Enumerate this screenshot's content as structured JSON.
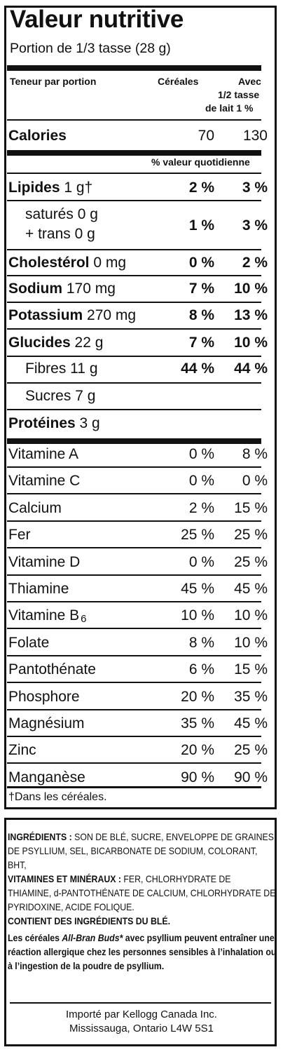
{
  "title": "Valeur nutritive",
  "portion": "Portion de 1/3 tasse (28 g)",
  "headers": {
    "teneur": "Teneur par portion",
    "cereales": "Céréales",
    "avec_1": "Avec",
    "avec_2": "1/2 tasse",
    "avec_3": "de lait 1 %"
  },
  "calories": {
    "label": "Calories",
    "cereales": "70",
    "avec": "130"
  },
  "dv_heading": "% valeur quotidienne",
  "nutrients": [
    {
      "label": "Lipides",
      "amount": "1 g†",
      "v1": "2 %",
      "v2": "3 %"
    },
    {
      "label": "saturés 0 g",
      "label2": "+ trans 0 g",
      "v1": "1 %",
      "v2": "3 %"
    },
    {
      "label": "Cholestérol",
      "amount": "0 mg",
      "v1": "0 %",
      "v2": "2 %"
    },
    {
      "label": "Sodium",
      "amount": "170 mg",
      "v1": "7 %",
      "v2": "10 %"
    },
    {
      "label": "Potassium",
      "amount": "270 mg",
      "v1": "8 %",
      "v2": "13 %"
    },
    {
      "label": "Glucides",
      "amount": "22 g",
      "v1": "7 %",
      "v2": "10 %"
    },
    {
      "label": "Fibres 11 g",
      "v1": "44 %",
      "v2": "44 %"
    },
    {
      "label": "Sucres 7 g"
    },
    {
      "label": "Protéines",
      "amount": "3 g"
    }
  ],
  "vitamins": [
    {
      "label": "Vitamine A",
      "v1": "0 %",
      "v2": "8 %"
    },
    {
      "label": "Vitamine C",
      "v1": "0 %",
      "v2": "0 %"
    },
    {
      "label": "Calcium",
      "v1": "2 %",
      "v2": "15 %"
    },
    {
      "label": "Fer",
      "v1": "25 %",
      "v2": "25 %"
    },
    {
      "label": "Vitamine D",
      "v1": "0 %",
      "v2": "25 %"
    },
    {
      "label": "Thiamine",
      "v1": "45 %",
      "v2": "45 %"
    },
    {
      "label": "Vitamine B",
      "sub": "6",
      "v1": "10 %",
      "v2": "10 %"
    },
    {
      "label": "Folate",
      "v1": "8 %",
      "v2": "10 %"
    },
    {
      "label": "Pantothénate",
      "v1": "6 %",
      "v2": "15 %"
    },
    {
      "label": "Phosphore",
      "v1": "20 %",
      "v2": "35 %"
    },
    {
      "label": "Magnésium",
      "v1": "35 %",
      "v2": "45 %"
    },
    {
      "label": "Zinc",
      "v1": "20 %",
      "v2": "25 %"
    },
    {
      "label": "Manganèse",
      "v1": "90 %",
      "v2": "90 %"
    }
  ],
  "footnote": "†Dans les céréales.",
  "ingredients": {
    "label": "INGRÉDIENTS :",
    "text": " SON DE BLÉ, SUCRE, ENVELOPPE DE GRAINES DE PSYLLIUM, SEL, BICARBONATE DE SODIUM, COLORANT, BHT,",
    "vit_label": "VITAMINES ET MINÉRAUX :",
    "vit_text": " FER, CHLORHYDRATE DE THIAMINE, d-PANTOTHÉNATE DE CALCIUM, CHLORHYDRATE DE PYRIDOXINE, ACIDE FOLIQUE.",
    "contains": "CONTIENT DES INGRÉDIENTS DU BLÉ.",
    "warning_1": "Les céréales ",
    "warning_brand": "All-Bran Buds*",
    "warning_2": " avec psyllium peuvent entraîner une réaction allergique chez les personnes sensibles à l’inhalation ou à l’ingestion de la poudre de psyllium.",
    "importer_1": "Importé par Kellogg Canada Inc.",
    "importer_2": "Mississauga, Ontario  L4W 5S1"
  }
}
